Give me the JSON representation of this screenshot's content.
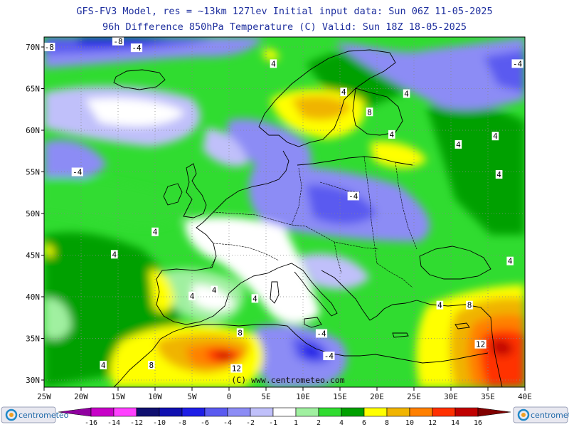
{
  "header": {
    "line1": "GFS-FV3 Model, res = ~13km 127lev    Initial input data: Sun 06Z 11-05-2025",
    "line2": "96h Difference 850hPa Temperature (C)  Valid: Sun 18Z 18-05-2025"
  },
  "map": {
    "lat_labels": [
      "70N",
      "65N",
      "60N",
      "55N",
      "50N",
      "45N",
      "40N",
      "35N",
      "30N"
    ],
    "lon_labels": [
      "25W",
      "20W",
      "15W",
      "10W",
      "5W",
      "0",
      "5E",
      "10E",
      "15E",
      "20E",
      "25E",
      "30E",
      "35E",
      "40E"
    ],
    "copyright": "(C) www.centrometeo.com",
    "contour_labels": [
      {
        "text": "-8",
        "lon": -24.3,
        "lat": 70.0
      },
      {
        "text": "-8",
        "lon": -15.0,
        "lat": 70.7
      },
      {
        "text": "-4",
        "lon": -12.5,
        "lat": 69.9
      },
      {
        "text": "4",
        "lon": 6.0,
        "lat": 68.0
      },
      {
        "text": "-4",
        "lon": 39.0,
        "lat": 68.0
      },
      {
        "text": "4",
        "lon": 15.5,
        "lat": 64.6
      },
      {
        "text": "4",
        "lon": 24.0,
        "lat": 64.4
      },
      {
        "text": "8",
        "lon": 19.0,
        "lat": 62.2
      },
      {
        "text": "4",
        "lon": 22.0,
        "lat": 59.5
      },
      {
        "text": "4",
        "lon": 31.0,
        "lat": 58.3
      },
      {
        "text": "4",
        "lon": 36.0,
        "lat": 59.3
      },
      {
        "text": "-4",
        "lon": -20.5,
        "lat": 55.0
      },
      {
        "text": "4",
        "lon": 36.5,
        "lat": 54.7
      },
      {
        "text": "-4",
        "lon": 16.8,
        "lat": 52.1
      },
      {
        "text": "4",
        "lon": -10.0,
        "lat": 47.8
      },
      {
        "text": "4",
        "lon": -15.5,
        "lat": 45.1
      },
      {
        "text": "4",
        "lon": 38.0,
        "lat": 44.3
      },
      {
        "text": "4",
        "lon": -5.0,
        "lat": 40.1
      },
      {
        "text": "4",
        "lon": -2.0,
        "lat": 40.8
      },
      {
        "text": "4",
        "lon": 3.5,
        "lat": 39.8
      },
      {
        "text": "4",
        "lon": 28.5,
        "lat": 39.0
      },
      {
        "text": "8",
        "lon": 32.5,
        "lat": 39.0
      },
      {
        "text": "-4",
        "lon": 12.5,
        "lat": 35.6
      },
      {
        "text": "8",
        "lon": 1.5,
        "lat": 35.7
      },
      {
        "text": "-4",
        "lon": 13.5,
        "lat": 32.9
      },
      {
        "text": "12",
        "lon": 34.0,
        "lat": 34.3
      },
      {
        "text": "4",
        "lon": -17.0,
        "lat": 31.8
      },
      {
        "text": "8",
        "lon": -10.5,
        "lat": 31.8
      },
      {
        "text": "12",
        "lon": 1.0,
        "lat": 31.4
      }
    ]
  },
  "colorbar": {
    "labels": [
      "-16",
      "-14",
      "-12",
      "-10",
      "-8",
      "-6",
      "-4",
      "-2",
      "-1",
      "1",
      "2",
      "4",
      "6",
      "8",
      "10",
      "12",
      "14",
      "16"
    ],
    "colors": [
      "#9000a0",
      "#c800c8",
      "#ff40ff",
      "#101070",
      "#1010b0",
      "#1e1ee6",
      "#5a5af0",
      "#8c8cf5",
      "#c0c0fa",
      "#ffffff",
      "#a0f0a0",
      "#30dc30",
      "#00a000",
      "#ffff00",
      "#f0b400",
      "#ff8000",
      "#ff3000",
      "#c00000",
      "#800000"
    ],
    "brand_left": "centrometeo",
    "brand_right": "centrometeo"
  }
}
